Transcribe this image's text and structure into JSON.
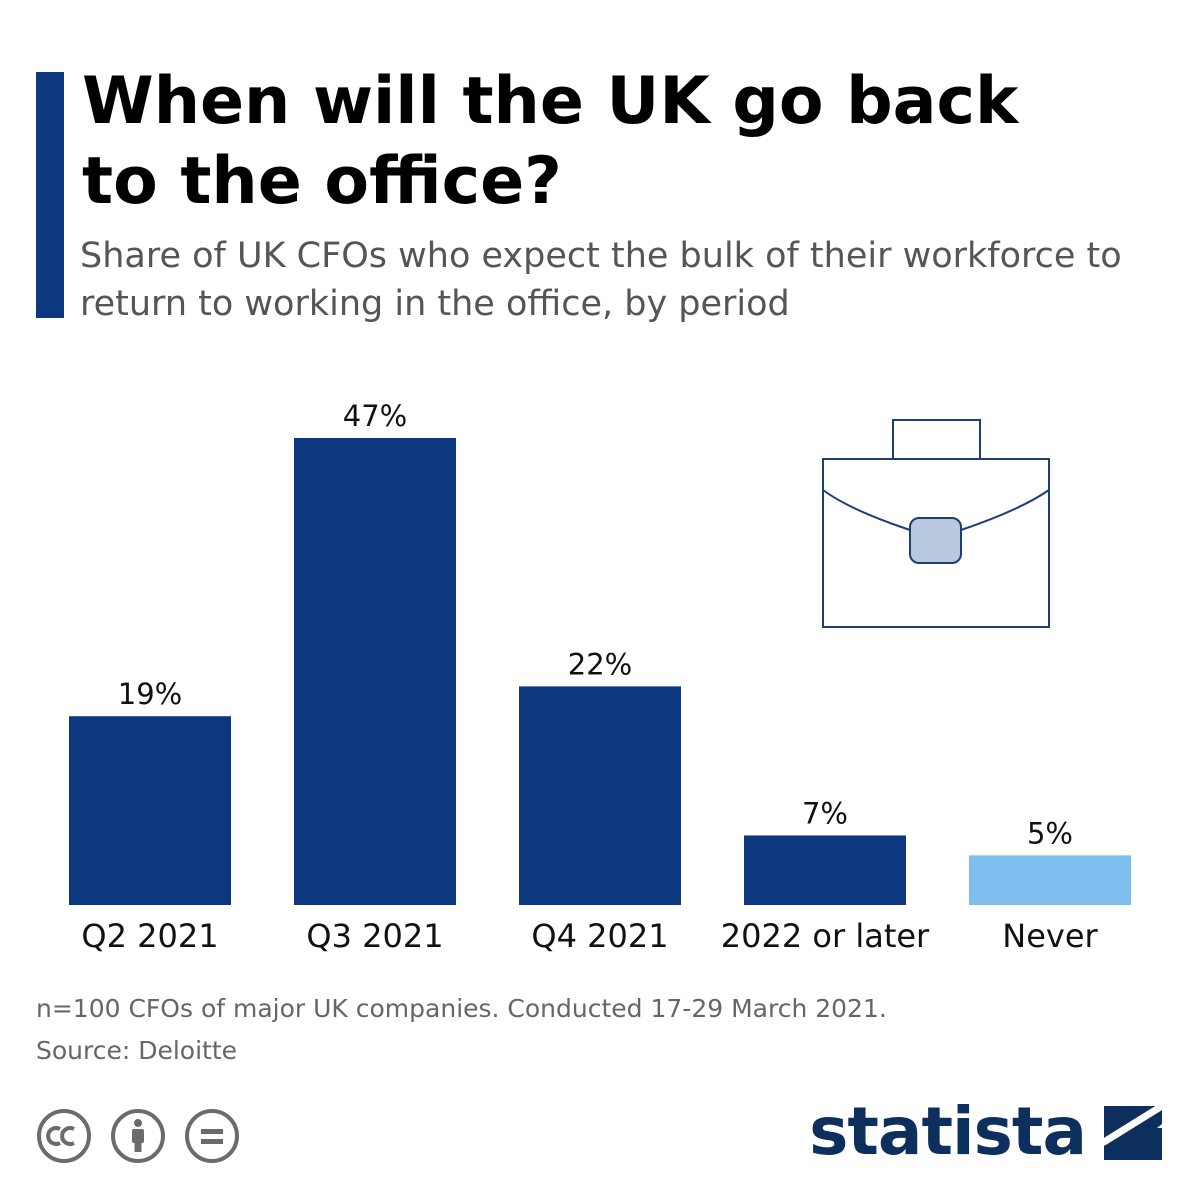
{
  "header": {
    "title": "When will the UK go back to the office?",
    "subtitle": "Share of UK CFOs who expect the bulk of their workforce to return to working in the office, by period"
  },
  "chart_data": {
    "type": "bar",
    "title": "When will the UK go back to the office?",
    "subtitle": "Share of UK CFOs who expect the bulk of their workforce to return to working in the office, by period",
    "categories": [
      "Q2 2021",
      "Q3 2021",
      "Q4 2021",
      "2022 or later",
      "Never"
    ],
    "values": [
      19,
      47,
      22,
      7,
      5
    ],
    "value_labels": [
      "19%",
      "47%",
      "22%",
      "7%",
      "5%"
    ],
    "unit": "%",
    "xlabel": "",
    "ylabel": "",
    "ylim": [
      0,
      47
    ],
    "grid": false,
    "colors": [
      "#0d3880",
      "#0d3880",
      "#0d3880",
      "#0d3880",
      "#7fbff0"
    ]
  },
  "illustration": {
    "icon": "briefcase-icon",
    "stroke": "#1f3d78",
    "clasp": "#b8c8de"
  },
  "footer": {
    "note": "n=100 CFOs of major UK companies. Conducted 17-29 March 2021.",
    "source": "Source: Deloitte",
    "brand": "statista"
  },
  "license_icons": [
    "cc-icon",
    "attribution-icon",
    "no-derivatives-icon"
  ],
  "colors": {
    "accent": "#0d3880",
    "brand": "#0d2f5e",
    "highlight": "#7fbff0"
  }
}
